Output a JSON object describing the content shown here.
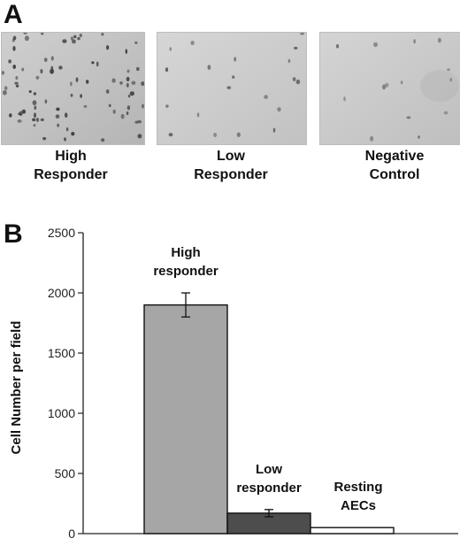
{
  "panel_a": {
    "letter": "A",
    "images": [
      {
        "caption_line1": "High",
        "caption_line2": "Responder"
      },
      {
        "caption_line1": "Low",
        "caption_line2": "Responder"
      },
      {
        "caption_line1": "Negative",
        "caption_line2": "Control"
      }
    ]
  },
  "panel_b": {
    "letter": "B"
  },
  "chart_data": {
    "type": "bar",
    "categories": [
      "High responder",
      "Low responder",
      "Resting AECs"
    ],
    "values": [
      1900,
      170,
      50
    ],
    "errors": [
      100,
      30,
      0
    ],
    "bar_colors": [
      "#a6a6a6",
      "#4d4d4d",
      "#ffffff"
    ],
    "annotations": [
      {
        "line1": "High",
        "line2": "responder"
      },
      {
        "line1": "Low",
        "line2": "responder"
      },
      {
        "line1": "Resting",
        "line2": "AECs"
      }
    ],
    "title": "",
    "xlabel": "",
    "ylabel": "Cell Number per field",
    "ylim": [
      0,
      2500
    ],
    "yticks": [
      0,
      500,
      1000,
      1500,
      2000,
      2500
    ],
    "grid": false
  }
}
